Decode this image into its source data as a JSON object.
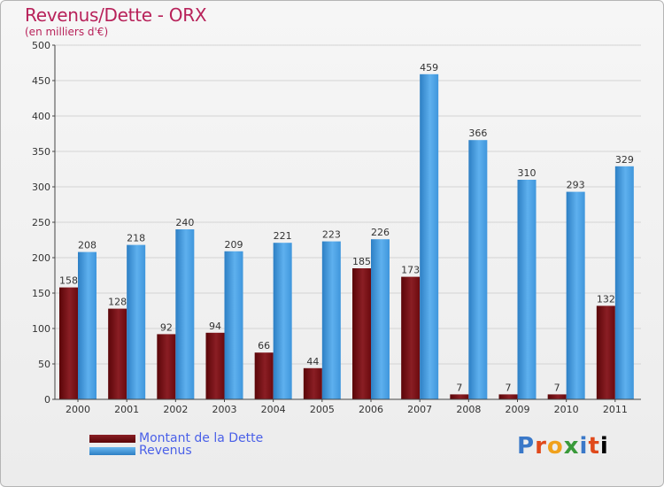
{
  "chart_data": {
    "type": "bar",
    "title": "Revenus/Dette - ORX",
    "subtitle": "(en milliers d'€)",
    "xlabel": "",
    "ylabel": "",
    "ylim": [
      0,
      500
    ],
    "yticks": [
      0,
      50,
      100,
      150,
      200,
      250,
      300,
      350,
      400,
      450,
      500
    ],
    "grid": true,
    "categories": [
      "2000",
      "2001",
      "2002",
      "2003",
      "2004",
      "2005",
      "2006",
      "2007",
      "2008",
      "2009",
      "2010",
      "2011"
    ],
    "series": [
      {
        "name": "Montant de la Dette",
        "color": "#6b0a0e",
        "values": [
          158,
          128,
          92,
          94,
          66,
          44,
          185,
          173,
          7,
          7,
          7,
          132
        ]
      },
      {
        "name": "Revenus",
        "color": "#4a9fe0",
        "values": [
          208,
          218,
          240,
          209,
          221,
          223,
          226,
          459,
          366,
          310,
          293,
          329
        ]
      }
    ],
    "legend": "bottom-left"
  },
  "colors": {
    "title": "#b8225a",
    "legend_text": "#4a60e8",
    "debt_dark": "#5a0508",
    "debt_light": "#9a2b30",
    "rev_dark": "#2d7fc4",
    "rev_light": "#6ab8f0"
  },
  "logo": {
    "letters": [
      "P",
      "r",
      "o",
      "x",
      "i",
      "t",
      "i"
    ],
    "text": "Proxiti"
  }
}
